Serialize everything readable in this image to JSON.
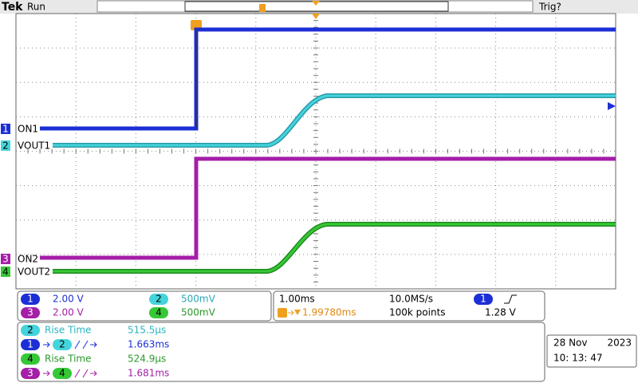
{
  "header": {
    "brand": "Tek",
    "state": "Run",
    "trigger_state": "Trig?"
  },
  "traces": [
    {
      "channel": "1",
      "label": "ON1"
    },
    {
      "channel": "2",
      "label": "VOUT1"
    },
    {
      "channel": "3",
      "label": "ON2"
    },
    {
      "channel": "4",
      "label": "VOUT2"
    }
  ],
  "vertical": [
    {
      "channel": "1",
      "scale": "2.00 V"
    },
    {
      "channel": "2",
      "scale": "500mV"
    },
    {
      "channel": "3",
      "scale": "2.00 V"
    },
    {
      "channel": "4",
      "scale": "500mV"
    }
  ],
  "horizontal": {
    "time_per_div": "1.00ms",
    "sample_rate": "10.0MS/s",
    "trigger_position": "1.99780ms",
    "record_length": "100k points",
    "trigger_source": "1",
    "trigger_level": "1.28 V"
  },
  "measurements": [
    {
      "channel": "2",
      "name": "Rise Time",
      "value": "515.5µs"
    },
    {
      "from": "1",
      "to": "2",
      "value": "1.663ms"
    },
    {
      "channel": "4",
      "name": "Rise Time",
      "value": "524.9µs"
    },
    {
      "from": "3",
      "to": "4",
      "value": "1.681ms"
    }
  ],
  "datetime": {
    "date": "28 Nov",
    "year": "2023",
    "time": "10: 13: 47"
  }
}
